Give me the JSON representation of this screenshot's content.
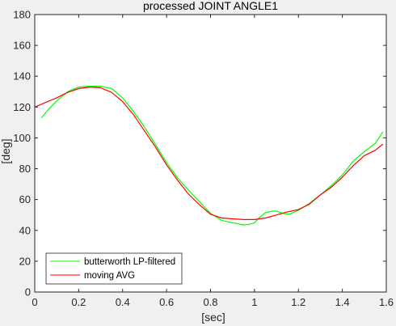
{
  "chart_data": {
    "type": "line",
    "title": "processed JOINT ANGLE1",
    "xlabel": "[sec]",
    "ylabel": "[deg]",
    "xlim": [
      0,
      1.6
    ],
    "ylim": [
      0,
      180
    ],
    "xticks": [
      "0",
      "0.2",
      "0.4",
      "0.6",
      "0.8",
      "1",
      "1.2",
      "1.4",
      "1.6"
    ],
    "yticks": [
      "0",
      "20",
      "40",
      "60",
      "80",
      "100",
      "120",
      "140",
      "160",
      "180"
    ],
    "grid": false,
    "legend_position": "bottom-left",
    "series": [
      {
        "name": "butterworth LP-filtered",
        "color": "#00ff00",
        "x": [
          0.03,
          0.06,
          0.1,
          0.15,
          0.2,
          0.25,
          0.3,
          0.35,
          0.4,
          0.45,
          0.5,
          0.55,
          0.6,
          0.65,
          0.7,
          0.75,
          0.8,
          0.85,
          0.9,
          0.95,
          0.98,
          1.0,
          1.02,
          1.05,
          1.08,
          1.1,
          1.13,
          1.16,
          1.2,
          1.25,
          1.3,
          1.35,
          1.4,
          1.45,
          1.5,
          1.55,
          1.585
        ],
        "y": [
          113,
          118,
          124,
          130,
          133,
          133.5,
          133.5,
          132,
          126,
          117,
          107,
          95.5,
          84,
          74,
          66,
          58.5,
          51,
          46.5,
          45,
          43.5,
          44,
          45,
          48,
          51.5,
          52.5,
          52.5,
          51,
          50.5,
          53,
          57.5,
          63,
          69,
          76,
          85,
          91,
          96.5,
          104
        ]
      },
      {
        "name": "moving AVG",
        "color": "#ff0000",
        "x": [
          0.0,
          0.05,
          0.1,
          0.15,
          0.2,
          0.25,
          0.3,
          0.35,
          0.4,
          0.45,
          0.5,
          0.55,
          0.6,
          0.65,
          0.7,
          0.75,
          0.8,
          0.85,
          0.9,
          0.95,
          1.0,
          1.05,
          1.1,
          1.15,
          1.2,
          1.25,
          1.3,
          1.35,
          1.4,
          1.45,
          1.5,
          1.55,
          1.585
        ],
        "y": [
          120,
          123,
          126,
          129.5,
          132,
          133,
          132.5,
          129.5,
          123.5,
          115,
          104.5,
          94,
          82.5,
          72.5,
          63.5,
          56.5,
          50.5,
          48,
          47.5,
          47,
          47,
          48,
          50,
          52,
          53.5,
          57,
          63,
          68,
          74.5,
          82,
          88.5,
          92,
          96
        ]
      }
    ]
  }
}
